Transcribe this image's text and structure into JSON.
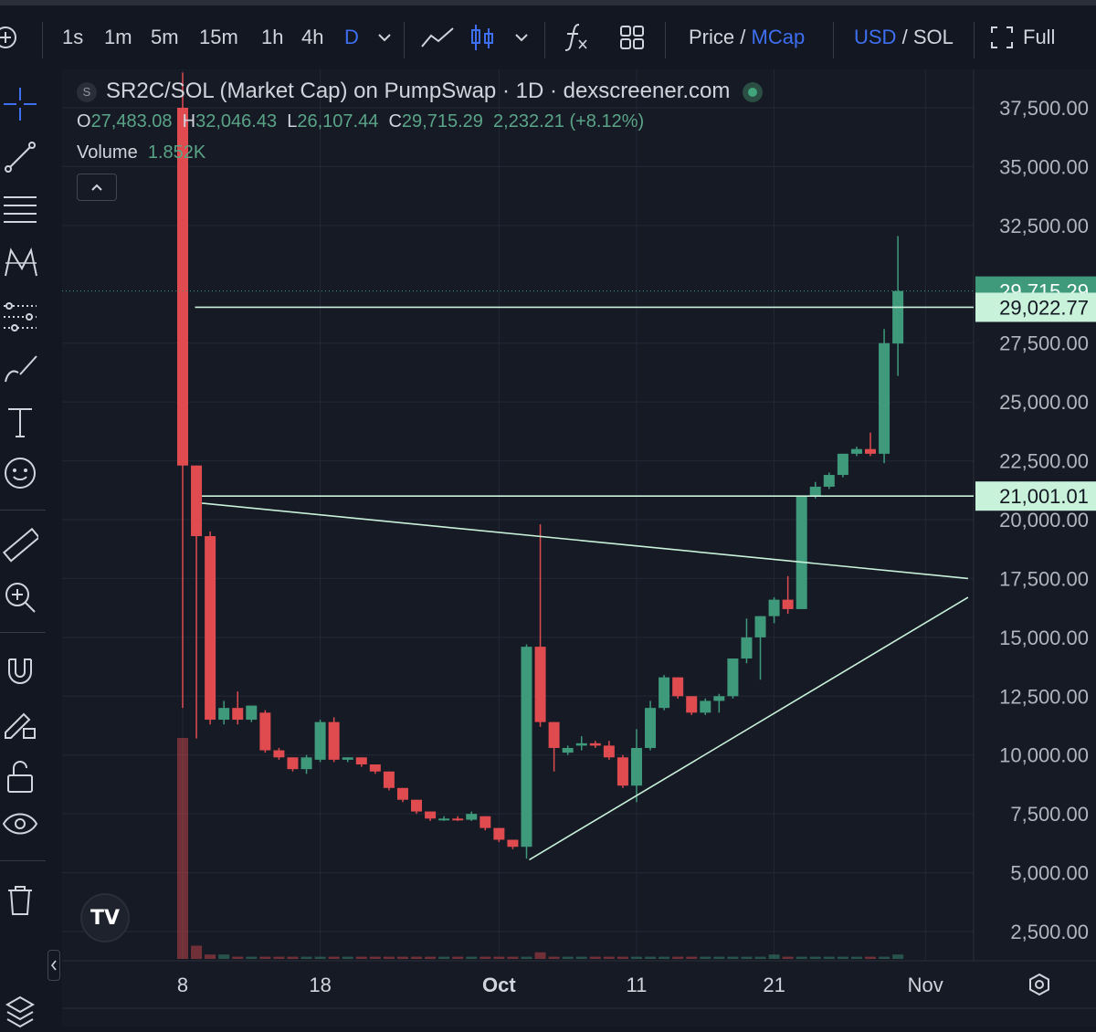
{
  "toolbar": {
    "intervals": [
      "1s",
      "1m",
      "5m",
      "15m",
      "1h",
      "4h",
      "D"
    ],
    "price_label": "Price",
    "slash": "/",
    "mcap_label": "MCap",
    "usd_label": "USD",
    "sol_label": "SOL",
    "full_label": "Full",
    "accent_color": "#3d6ff0"
  },
  "legend": {
    "symbol_icon": "S",
    "title": "SR2C/SOL (Market Cap) on PumpSwap · 1D · dexscreener.com",
    "o_label": "O",
    "o_value": "27,483.08",
    "h_label": "H",
    "h_value": "32,046.43",
    "l_label": "L",
    "l_value": "26,107.44",
    "c_label": "C",
    "c_value": "29,715.29",
    "change": "2,232.21 (+8.12%)",
    "volume_label": "Volume",
    "volume_value": "1.852K"
  },
  "logo_text": "TV",
  "chart_data": {
    "type": "candlestick",
    "title": "SR2C/SOL (Market Cap) on PumpSwap · 1D · dexscreener.com",
    "ylim": [
      1000,
      39000
    ],
    "y_ticks": [
      2500,
      5000,
      7500,
      10000,
      12500,
      15000,
      17500,
      20000,
      22500,
      25000,
      27500,
      32500,
      35000,
      37500
    ],
    "y_tick_labels": [
      "2,500.00",
      "5,000.00",
      "7,500.00",
      "10,000.00",
      "12,500.00",
      "15,000.00",
      "17,500.00",
      "20,000.00",
      "22,500.00",
      "25,000.00",
      "27,500.00",
      "32,500.00",
      "35,000.00",
      "37,500.00"
    ],
    "x_ticks": [
      {
        "day": 8,
        "label": "8"
      },
      {
        "day": 18,
        "label": "18"
      },
      {
        "day": 31,
        "label": "Oct"
      },
      {
        "day": 41,
        "label": "11"
      },
      {
        "day": 51,
        "label": "21"
      },
      {
        "day": 62,
        "label": "Nov"
      }
    ],
    "price_badges": [
      {
        "value": 29715.29,
        "label": "29,715.29",
        "color": "#3f9a7c",
        "text_color": "#ffffff"
      },
      {
        "value": 29022.77,
        "label": "29,022.77",
        "color": "#c9f2da",
        "text_color": "#131722"
      },
      {
        "value": 21001.01,
        "label": "21,001.01",
        "color": "#c9f2da",
        "text_color": "#131722"
      }
    ],
    "hlines": [
      {
        "value": 29022.77,
        "day_from": 8.9
      },
      {
        "value": 21001.01,
        "day_from": 9.4
      }
    ],
    "trendlines": [
      {
        "from": [
          9.4,
          20700
        ],
        "to": [
          65.1,
          17500
        ]
      },
      {
        "from": [
          33.2,
          5550
        ],
        "to": [
          65.1,
          16700
        ]
      }
    ],
    "colors": {
      "up": "#3f9a7c",
      "down": "#e04b4f",
      "line": "#c9f2da",
      "grid": "#232836"
    },
    "candles": [
      {
        "day": 8,
        "o": 37500,
        "h": 39000,
        "l": 12000,
        "c": 22300,
        "v": 1
      },
      {
        "day": 9,
        "o": 22300,
        "h": 22300,
        "l": 10700,
        "c": 19300,
        "v": 0.06
      },
      {
        "day": 10,
        "o": 19300,
        "h": 19500,
        "l": 11300,
        "c": 11500,
        "v": 0.02
      },
      {
        "day": 11,
        "o": 11500,
        "h": 12300,
        "l": 11300,
        "c": 12000,
        "v": 0.02
      },
      {
        "day": 12,
        "o": 12000,
        "h": 12700,
        "l": 11300,
        "c": 11500,
        "v": 0.01
      },
      {
        "day": 13,
        "o": 11500,
        "h": 12100,
        "l": 11400,
        "c": 12100,
        "v": 0.01
      },
      {
        "day": 14,
        "o": 11800,
        "h": 11900,
        "l": 10100,
        "c": 10200,
        "v": 0.01
      },
      {
        "day": 15,
        "o": 10200,
        "h": 10300,
        "l": 9800,
        "c": 9900,
        "v": 0.01
      },
      {
        "day": 16,
        "o": 9900,
        "h": 9900,
        "l": 9300,
        "c": 9400,
        "v": 0.01
      },
      {
        "day": 17,
        "o": 9400,
        "h": 10000,
        "l": 9200,
        "c": 9900,
        "v": 0.01
      },
      {
        "day": 18,
        "o": 9800,
        "h": 11500,
        "l": 9700,
        "c": 11400,
        "v": 0.01
      },
      {
        "day": 19,
        "o": 11400,
        "h": 11600,
        "l": 9700,
        "c": 9800,
        "v": 0.01
      },
      {
        "day": 20,
        "o": 9800,
        "h": 9900,
        "l": 9700,
        "c": 9900,
        "v": 0.01
      },
      {
        "day": 21,
        "o": 9900,
        "h": 9900,
        "l": 9500,
        "c": 9600,
        "v": 0.01
      },
      {
        "day": 22,
        "o": 9600,
        "h": 9600,
        "l": 9200,
        "c": 9300,
        "v": 0.01
      },
      {
        "day": 23,
        "o": 9300,
        "h": 9300,
        "l": 8500,
        "c": 8600,
        "v": 0.01
      },
      {
        "day": 24,
        "o": 8600,
        "h": 8600,
        "l": 8000,
        "c": 8100,
        "v": 0.01
      },
      {
        "day": 25,
        "o": 8100,
        "h": 8100,
        "l": 7500,
        "c": 7600,
        "v": 0.01
      },
      {
        "day": 26,
        "o": 7600,
        "h": 7600,
        "l": 7200,
        "c": 7300,
        "v": 0.01
      },
      {
        "day": 27,
        "o": 7300,
        "h": 7400,
        "l": 7200,
        "c": 7300,
        "v": 0.01
      },
      {
        "day": 28,
        "o": 7300,
        "h": 7400,
        "l": 7200,
        "c": 7250,
        "v": 0.01
      },
      {
        "day": 29,
        "o": 7250,
        "h": 7600,
        "l": 7200,
        "c": 7500,
        "v": 0.01
      },
      {
        "day": 30,
        "o": 7400,
        "h": 7400,
        "l": 6800,
        "c": 6900,
        "v": 0.01
      },
      {
        "day": 31,
        "o": 6900,
        "h": 6900,
        "l": 6300,
        "c": 6400,
        "v": 0.01
      },
      {
        "day": 32,
        "o": 6400,
        "h": 6400,
        "l": 6000,
        "c": 6100,
        "v": 0.01
      },
      {
        "day": 33,
        "o": 6100,
        "h": 14700,
        "l": 5600,
        "c": 14600,
        "v": 0.01
      },
      {
        "day": 34,
        "o": 14600,
        "h": 19800,
        "l": 11200,
        "c": 11400,
        "v": 0.03
      },
      {
        "day": 35,
        "o": 11400,
        "h": 11400,
        "l": 9300,
        "c": 10300,
        "v": 0.01
      },
      {
        "day": 36,
        "o": 10100,
        "h": 10400,
        "l": 10000,
        "c": 10300,
        "v": 0.01
      },
      {
        "day": 37,
        "o": 10400,
        "h": 10800,
        "l": 10200,
        "c": 10500,
        "v": 0.01
      },
      {
        "day": 38,
        "o": 10500,
        "h": 10600,
        "l": 10300,
        "c": 10400,
        "v": 0.01
      },
      {
        "day": 39,
        "o": 10400,
        "h": 10600,
        "l": 9800,
        "c": 9900,
        "v": 0.01
      },
      {
        "day": 40,
        "o": 9900,
        "h": 10000,
        "l": 8600,
        "c": 8700,
        "v": 0.01
      },
      {
        "day": 41,
        "o": 8700,
        "h": 11100,
        "l": 8000,
        "c": 10300,
        "v": 0.01
      },
      {
        "day": 42,
        "o": 10300,
        "h": 12300,
        "l": 10200,
        "c": 12000,
        "v": 0.01
      },
      {
        "day": 43,
        "o": 12000,
        "h": 13400,
        "l": 11900,
        "c": 13300,
        "v": 0.01
      },
      {
        "day": 44,
        "o": 13300,
        "h": 13300,
        "l": 12400,
        "c": 12500,
        "v": 0.01
      },
      {
        "day": 45,
        "o": 12500,
        "h": 12500,
        "l": 11700,
        "c": 11800,
        "v": 0.01
      },
      {
        "day": 46,
        "o": 11800,
        "h": 12400,
        "l": 11700,
        "c": 12300,
        "v": 0.01
      },
      {
        "day": 47,
        "o": 12300,
        "h": 12600,
        "l": 11800,
        "c": 12500,
        "v": 0.01
      },
      {
        "day": 48,
        "o": 12500,
        "h": 14100,
        "l": 12400,
        "c": 14100,
        "v": 0.01
      },
      {
        "day": 49,
        "o": 14100,
        "h": 15800,
        "l": 13900,
        "c": 15000,
        "v": 0.01
      },
      {
        "day": 50,
        "o": 15000,
        "h": 15900,
        "l": 13200,
        "c": 15900,
        "v": 0.01
      },
      {
        "day": 51,
        "o": 15900,
        "h": 16700,
        "l": 15600,
        "c": 16600,
        "v": 0.02
      },
      {
        "day": 52,
        "o": 16600,
        "h": 17600,
        "l": 16000,
        "c": 16200,
        "v": 0.01
      },
      {
        "day": 53,
        "o": 16200,
        "h": 21000,
        "l": 16200,
        "c": 21000,
        "v": 0.01
      },
      {
        "day": 54,
        "o": 21000,
        "h": 21600,
        "l": 20900,
        "c": 21400,
        "v": 0.01
      },
      {
        "day": 55,
        "o": 21400,
        "h": 22000,
        "l": 21300,
        "c": 21900,
        "v": 0.01
      },
      {
        "day": 56,
        "o": 21900,
        "h": 22800,
        "l": 21800,
        "c": 22800,
        "v": 0.01
      },
      {
        "day": 57,
        "o": 22800,
        "h": 23100,
        "l": 22700,
        "c": 23000,
        "v": 0.01
      },
      {
        "day": 58,
        "o": 23000,
        "h": 23700,
        "l": 22700,
        "c": 22800,
        "v": 0.01
      },
      {
        "day": 59,
        "o": 22800,
        "h": 28100,
        "l": 22400,
        "c": 27500,
        "v": 0.01
      },
      {
        "day": 60,
        "o": 27483.08,
        "h": 32046.43,
        "l": 26107.44,
        "c": 29715.29,
        "v": 0.02
      }
    ]
  }
}
